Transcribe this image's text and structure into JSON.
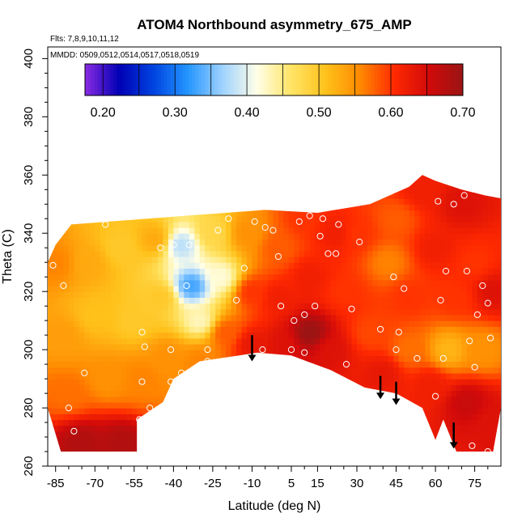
{
  "chart_data": {
    "type": "heatmap",
    "title": "ATOM4 Northbound asymmetry_675_AMP",
    "flights_label": "Flts: 7,8,9,10,11,12",
    "dates_label": "MMDD: 0509,0512,0514,0517,0518,0519",
    "xlabel": "Latitude (deg N)",
    "ylabel": "Theta (C)",
    "xlim": [
      -88,
      85
    ],
    "ylim": [
      260,
      404
    ],
    "xticks": [
      -85,
      -70,
      -55,
      -40,
      -25,
      -10,
      5,
      15,
      30,
      45,
      60,
      75
    ],
    "yticks": [
      260,
      280,
      300,
      320,
      340,
      360,
      380,
      400
    ],
    "colorbar": {
      "range": [
        0.175,
        0.7
      ],
      "ticks": [
        0.2,
        0.3,
        0.4,
        0.5,
        0.6,
        0.7
      ],
      "tick_labels": [
        "0.20",
        "0.30",
        "0.40",
        "0.50",
        "0.60",
        "0.70"
      ],
      "colors": [
        "#8a2be2",
        "#0000b4",
        "#0044e0",
        "#2496ff",
        "#9fd2ff",
        "#ffffe8",
        "#ffe466",
        "#ffc21c",
        "#ff8a00",
        "#ff2a00",
        "#d20a0a",
        "#9a1414"
      ]
    },
    "top_boundary": [
      [
        -88,
        330
      ],
      [
        -85,
        336
      ],
      [
        -79,
        343
      ],
      [
        -50,
        345
      ],
      [
        -20,
        347
      ],
      [
        -5,
        348
      ],
      [
        15,
        347
      ],
      [
        35,
        350
      ],
      [
        50,
        356
      ],
      [
        55,
        360
      ],
      [
        60,
        358
      ],
      [
        70,
        355
      ],
      [
        79,
        353
      ],
      [
        85,
        352
      ]
    ],
    "bottom_boundary": [
      [
        -88,
        280
      ],
      [
        -83,
        265
      ],
      [
        -54,
        265
      ],
      [
        -54,
        276
      ],
      [
        -44,
        282
      ],
      [
        -40,
        290
      ],
      [
        -30,
        296
      ],
      [
        -15,
        298
      ],
      [
        -8,
        299
      ],
      [
        5,
        298
      ],
      [
        20,
        293
      ],
      [
        33,
        287
      ],
      [
        45,
        285
      ],
      [
        55,
        280
      ],
      [
        60,
        269
      ],
      [
        63,
        276
      ],
      [
        68,
        265
      ],
      [
        75,
        265
      ],
      [
        82,
        265
      ],
      [
        85,
        280
      ]
    ],
    "color_field": [
      {
        "lat": -85,
        "theta": 330,
        "value": 0.56
      },
      {
        "lat": -82,
        "theta": 305,
        "value": 0.54
      },
      {
        "lat": -80,
        "theta": 285,
        "value": 0.57
      },
      {
        "lat": -75,
        "theta": 268,
        "value": 0.68
      },
      {
        "lat": -60,
        "theta": 268,
        "value": 0.68
      },
      {
        "lat": -72,
        "theta": 330,
        "value": 0.53
      },
      {
        "lat": -70,
        "theta": 312,
        "value": 0.51
      },
      {
        "lat": -65,
        "theta": 290,
        "value": 0.55
      },
      {
        "lat": -60,
        "theta": 335,
        "value": 0.5
      },
      {
        "lat": -55,
        "theta": 310,
        "value": 0.5
      },
      {
        "lat": -52,
        "theta": 290,
        "value": 0.56
      },
      {
        "lat": -47,
        "theta": 338,
        "value": 0.53
      },
      {
        "lat": -45,
        "theta": 318,
        "value": 0.5
      },
      {
        "lat": -42,
        "theta": 298,
        "value": 0.55
      },
      {
        "lat": -37,
        "theta": 336,
        "value": 0.38
      },
      {
        "lat": -33,
        "theta": 322,
        "value": 0.33
      },
      {
        "lat": -30,
        "theta": 310,
        "value": 0.43
      },
      {
        "lat": -30,
        "theta": 296,
        "value": 0.56
      },
      {
        "lat": -25,
        "theta": 340,
        "value": 0.48
      },
      {
        "lat": -22,
        "theta": 325,
        "value": 0.42
      },
      {
        "lat": -20,
        "theta": 306,
        "value": 0.58
      },
      {
        "lat": -12,
        "theta": 340,
        "value": 0.55
      },
      {
        "lat": -10,
        "theta": 320,
        "value": 0.6
      },
      {
        "lat": -10,
        "theta": 302,
        "value": 0.63
      },
      {
        "lat": 0,
        "theta": 335,
        "value": 0.58
      },
      {
        "lat": 0,
        "theta": 318,
        "value": 0.62
      },
      {
        "lat": 2,
        "theta": 302,
        "value": 0.64
      },
      {
        "lat": 10,
        "theta": 345,
        "value": 0.6
      },
      {
        "lat": 12,
        "theta": 325,
        "value": 0.62
      },
      {
        "lat": 12,
        "theta": 306,
        "value": 0.7
      },
      {
        "lat": 20,
        "theta": 300,
        "value": 0.64
      },
      {
        "lat": 22,
        "theta": 340,
        "value": 0.62
      },
      {
        "lat": 25,
        "theta": 320,
        "value": 0.6
      },
      {
        "lat": 30,
        "theta": 340,
        "value": 0.6
      },
      {
        "lat": 35,
        "theta": 306,
        "value": 0.59
      },
      {
        "lat": 40,
        "theta": 292,
        "value": 0.63
      },
      {
        "lat": 42,
        "theta": 330,
        "value": 0.56
      },
      {
        "lat": 45,
        "theta": 345,
        "value": 0.58
      },
      {
        "lat": 50,
        "theta": 318,
        "value": 0.6
      },
      {
        "lat": 50,
        "theta": 300,
        "value": 0.57
      },
      {
        "lat": 55,
        "theta": 355,
        "value": 0.62
      },
      {
        "lat": 60,
        "theta": 335,
        "value": 0.62
      },
      {
        "lat": 58,
        "theta": 288,
        "value": 0.62
      },
      {
        "lat": 65,
        "theta": 300,
        "value": 0.52
      },
      {
        "lat": 68,
        "theta": 318,
        "value": 0.6
      },
      {
        "lat": 70,
        "theta": 350,
        "value": 0.64
      },
      {
        "lat": 72,
        "theta": 282,
        "value": 0.66
      },
      {
        "lat": 75,
        "theta": 330,
        "value": 0.6
      },
      {
        "lat": 78,
        "theta": 300,
        "value": 0.55
      },
      {
        "lat": 82,
        "theta": 320,
        "value": 0.64
      },
      {
        "lat": 82,
        "theta": 275,
        "value": 0.64
      }
    ],
    "observation_points": [
      [
        -86,
        329
      ],
      [
        -82,
        322
      ],
      [
        -80,
        280
      ],
      [
        -78,
        272
      ],
      [
        -74,
        292
      ],
      [
        -66,
        343
      ],
      [
        -52,
        306
      ],
      [
        -51,
        301
      ],
      [
        -52,
        289
      ],
      [
        -53,
        276
      ],
      [
        -49,
        280
      ],
      [
        -45,
        335
      ],
      [
        -41,
        300
      ],
      [
        -41,
        289
      ],
      [
        -40,
        336
      ],
      [
        -37,
        292
      ],
      [
        -35,
        322
      ],
      [
        -34,
        336
      ],
      [
        -27,
        300
      ],
      [
        -27,
        296
      ],
      [
        -23,
        341
      ],
      [
        -21,
        296
      ],
      [
        -19,
        345
      ],
      [
        -16,
        317
      ],
      [
        -13,
        328
      ],
      [
        -9,
        344
      ],
      [
        -6,
        300
      ],
      [
        -5,
        342
      ],
      [
        -2,
        341
      ],
      [
        0,
        332
      ],
      [
        1,
        315
      ],
      [
        5,
        300
      ],
      [
        6,
        310
      ],
      [
        8,
        344
      ],
      [
        10,
        299
      ],
      [
        10,
        312
      ],
      [
        12,
        346
      ],
      [
        14,
        315
      ],
      [
        16,
        339
      ],
      [
        17,
        345
      ],
      [
        19,
        333
      ],
      [
        22,
        333
      ],
      [
        23,
        343
      ],
      [
        26,
        295
      ],
      [
        28,
        314
      ],
      [
        31,
        337
      ],
      [
        39,
        307
      ],
      [
        44,
        325
      ],
      [
        45,
        300
      ],
      [
        46,
        306
      ],
      [
        48,
        321
      ],
      [
        53,
        297
      ],
      [
        60,
        284
      ],
      [
        61,
        351
      ],
      [
        62,
        317
      ],
      [
        63,
        297
      ],
      [
        64,
        327
      ],
      [
        67,
        350
      ],
      [
        71,
        353
      ],
      [
        72,
        327
      ],
      [
        73,
        303
      ],
      [
        74,
        267
      ],
      [
        75,
        294
      ],
      [
        76,
        312
      ],
      [
        78,
        322
      ],
      [
        80,
        316
      ],
      [
        80,
        265
      ],
      [
        81,
        304
      ]
    ],
    "arrows": [
      {
        "lat": -10,
        "theta_from": 305,
        "theta_to": 296
      },
      {
        "lat": 39,
        "theta_from": 291,
        "theta_to": 283
      },
      {
        "lat": 45,
        "theta_from": 289,
        "theta_to": 281
      },
      {
        "lat": 67,
        "theta_from": 275,
        "theta_to": 266
      }
    ]
  }
}
